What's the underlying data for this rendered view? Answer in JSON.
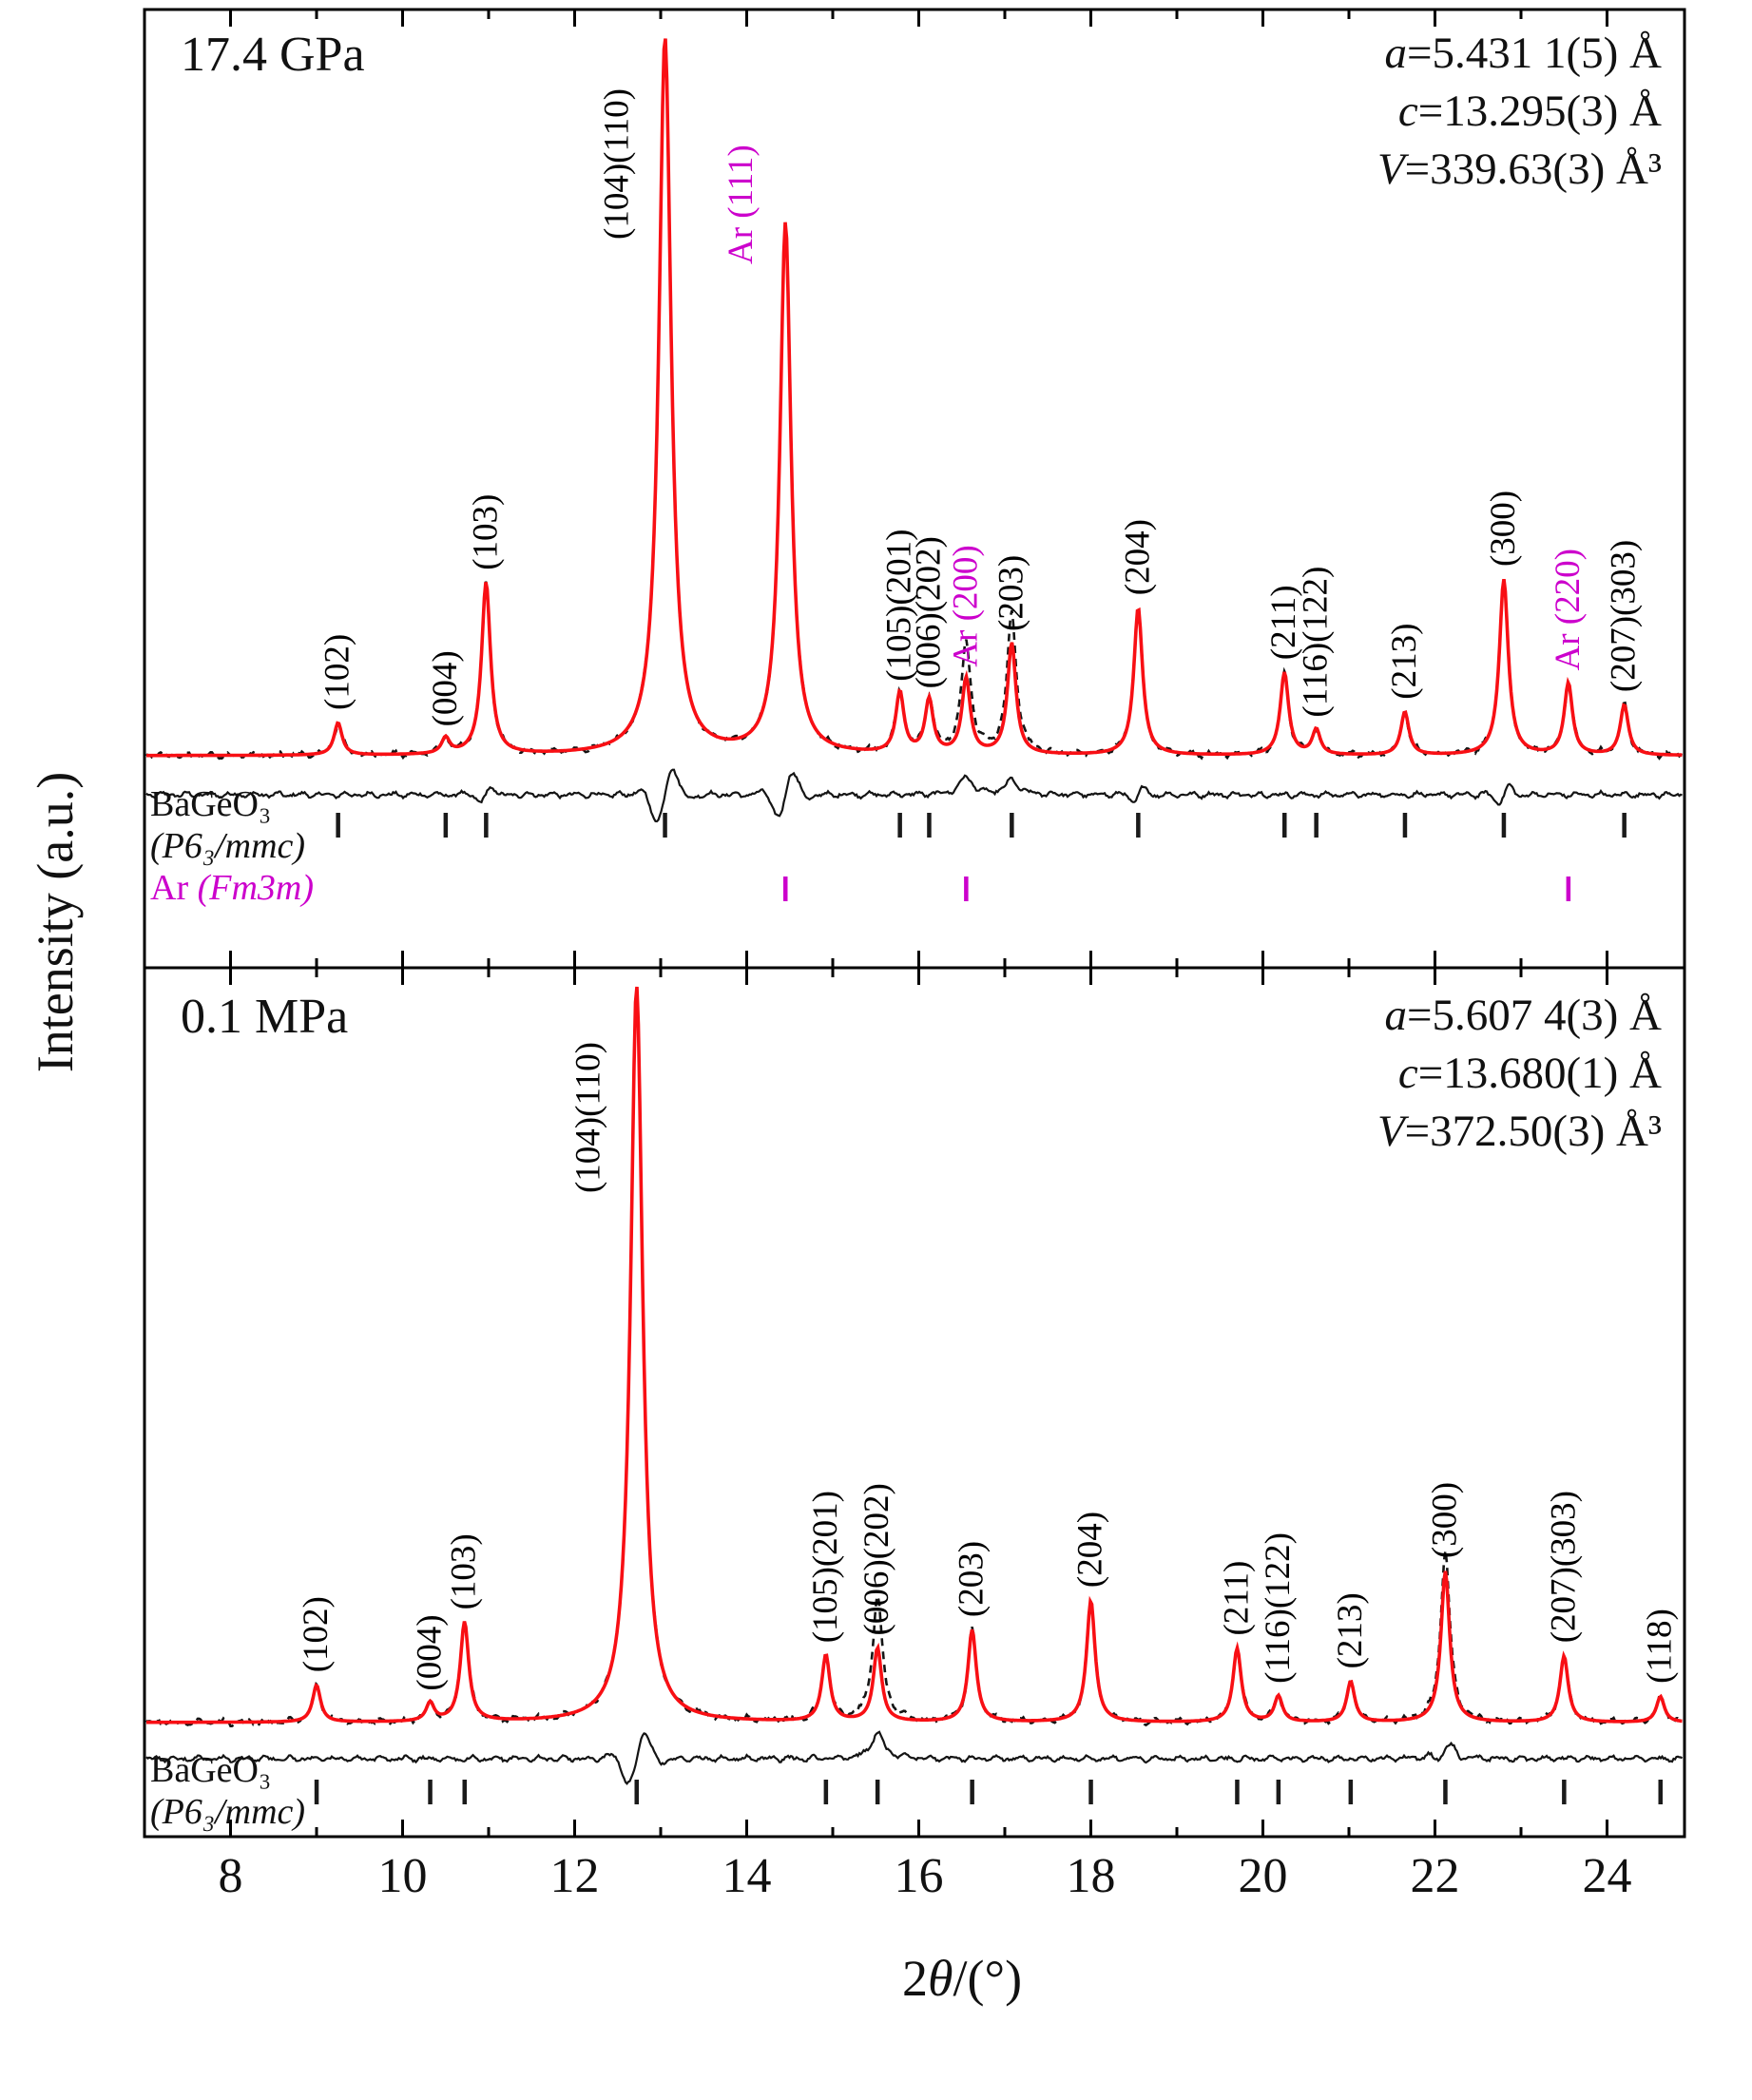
{
  "figure": {
    "y_axis_label": "Intensity (a.u.)",
    "x_axis_label": "2θ/(°)",
    "x_axis_label_parts": {
      "prefix": "2",
      "theta": "θ",
      "suffix": "/(°)"
    },
    "x_ticks": [
      "8",
      "10",
      "12",
      "14",
      "16",
      "18",
      "20",
      "22",
      "24"
    ],
    "colors": {
      "calculated": "#f80f14",
      "observed": "#141414",
      "difference": "#141414",
      "argon": "#cc00cc",
      "bragg_tick": "#1a1a1a"
    }
  },
  "chart_data": [
    {
      "type": "line",
      "panel": "top",
      "pressure_label": "17.4 GPa",
      "x_range": [
        7.0,
        24.9
      ],
      "xlabel": "2θ/(°)",
      "ylabel": "Intensity (a.u.)",
      "series": [
        "observed (black dashed)",
        "calculated (red solid)",
        "difference (black solid)"
      ],
      "lattice_parameters": [
        {
          "symbol": "a",
          "value": "=5.431 1(5) Å"
        },
        {
          "symbol": "c",
          "value": "=13.295(3) Å"
        },
        {
          "symbol": "V",
          "value": "=339.63(3) Å³"
        }
      ],
      "peaks": [
        {
          "two_theta": 9.25,
          "rel_intensity": 0.045,
          "label": "(102)",
          "phase": "BaGeO3"
        },
        {
          "two_theta": 10.5,
          "rel_intensity": 0.022,
          "label": "(004)",
          "phase": "BaGeO3"
        },
        {
          "two_theta": 10.97,
          "rel_intensity": 0.24,
          "label": "(103)",
          "phase": "BaGeO3"
        },
        {
          "two_theta": 13.05,
          "rel_intensity": 1.0,
          "label": "(104)(110)",
          "phase": "BaGeO3",
          "label_dx": -50,
          "label_y": 252
        },
        {
          "two_theta": 14.45,
          "rel_intensity": 0.74,
          "label": "Ar (111)",
          "phase": "Ar",
          "label_dx": -46,
          "label_y": 278
        },
        {
          "two_theta": 15.78,
          "rel_intensity": 0.085,
          "label": "(105)(201)",
          "phase": "BaGeO3"
        },
        {
          "two_theta": 16.12,
          "rel_intensity": 0.075,
          "label": "(006)(202)",
          "phase": "BaGeO3"
        },
        {
          "two_theta": 16.55,
          "rel_intensity": 0.105,
          "label": "Ar (200)",
          "phase": "Ar",
          "obs_extra": 0.05
        },
        {
          "two_theta": 17.08,
          "rel_intensity": 0.155,
          "label": "(203)",
          "phase": "BaGeO3",
          "obs_extra": 0.04
        },
        {
          "two_theta": 18.55,
          "rel_intensity": 0.205,
          "label": "(204)",
          "phase": "BaGeO3"
        },
        {
          "two_theta": 20.25,
          "rel_intensity": 0.115,
          "label": "(211)",
          "phase": "BaGeO3"
        },
        {
          "two_theta": 20.62,
          "rel_intensity": 0.035,
          "label": "(116)(122)",
          "phase": "BaGeO3"
        },
        {
          "two_theta": 21.65,
          "rel_intensity": 0.06,
          "label": "(213)",
          "phase": "BaGeO3"
        },
        {
          "two_theta": 22.8,
          "rel_intensity": 0.245,
          "label": "(300)",
          "phase": "BaGeO3"
        },
        {
          "two_theta": 23.55,
          "rel_intensity": 0.1,
          "label": "Ar (220)",
          "phase": "Ar"
        },
        {
          "two_theta": 24.2,
          "rel_intensity": 0.07,
          "label": "(207)(303)",
          "phase": "BaGeO3"
        }
      ],
      "phases": [
        {
          "name": "BaGeO₃",
          "symmetry": "(P6₃/mmc)",
          "tick_color": "#1a1a1a",
          "tick_positions": [
            9.25,
            10.5,
            10.97,
            13.05,
            15.78,
            16.12,
            17.08,
            18.55,
            20.25,
            20.62,
            21.65,
            22.8,
            24.2
          ]
        },
        {
          "name": "Ar",
          "symmetry": "(Fm3m)",
          "tick_color": "#cc00cc",
          "tick_positions": [
            14.45,
            16.55,
            23.55
          ]
        }
      ]
    },
    {
      "type": "line",
      "panel": "bottom",
      "pressure_label": "0.1 MPa",
      "x_range": [
        7.0,
        24.9
      ],
      "xlabel": "2θ/(°)",
      "ylabel": "Intensity (a.u.)",
      "series": [
        "observed (black dashed)",
        "calculated (red solid)",
        "difference (black solid)"
      ],
      "lattice_parameters": [
        {
          "symbol": "a",
          "value": "=5.607 4(3) Å"
        },
        {
          "symbol": "c",
          "value": "=13.680(1) Å"
        },
        {
          "symbol": "V",
          "value": "=372.50(3) Å³"
        }
      ],
      "peaks": [
        {
          "two_theta": 9.0,
          "rel_intensity": 0.05,
          "label": "(102)",
          "phase": "BaGeO3"
        },
        {
          "two_theta": 10.32,
          "rel_intensity": 0.025,
          "label": "(004)",
          "phase": "BaGeO3"
        },
        {
          "two_theta": 10.72,
          "rel_intensity": 0.135,
          "label": "(103)",
          "phase": "BaGeO3"
        },
        {
          "two_theta": 12.72,
          "rel_intensity": 1.0,
          "label": "(104)(110)",
          "phase": "BaGeO3",
          "label_dx": -50,
          "label_y": 1255
        },
        {
          "two_theta": 14.92,
          "rel_intensity": 0.09,
          "label": "(105)(201)",
          "phase": "BaGeO3"
        },
        {
          "two_theta": 15.52,
          "rel_intensity": 0.1,
          "label": "(006)(202)",
          "phase": "BaGeO3",
          "obs_extra": 0.07
        },
        {
          "two_theta": 16.62,
          "rel_intensity": 0.125,
          "label": "(203)",
          "phase": "BaGeO3"
        },
        {
          "two_theta": 18.0,
          "rel_intensity": 0.165,
          "label": "(204)",
          "phase": "BaGeO3"
        },
        {
          "two_theta": 19.7,
          "rel_intensity": 0.1,
          "label": "(211)",
          "phase": "BaGeO3"
        },
        {
          "two_theta": 20.18,
          "rel_intensity": 0.035,
          "label": "(116)(122)",
          "phase": "BaGeO3"
        },
        {
          "two_theta": 21.02,
          "rel_intensity": 0.055,
          "label": "(213)",
          "phase": "BaGeO3"
        },
        {
          "two_theta": 22.12,
          "rel_intensity": 0.205,
          "label": "(300)",
          "phase": "BaGeO3",
          "obs_extra": 0.03
        },
        {
          "two_theta": 23.5,
          "rel_intensity": 0.09,
          "label": "(207)(303)",
          "phase": "BaGeO3"
        },
        {
          "two_theta": 24.62,
          "rel_intensity": 0.035,
          "label": "(118)",
          "phase": "BaGeO3"
        }
      ],
      "phases": [
        {
          "name": "BaGeO₃",
          "symmetry": "(P6₃/mmc)",
          "tick_color": "#1a1a1a",
          "tick_positions": [
            9.0,
            10.32,
            10.72,
            12.72,
            14.92,
            15.52,
            16.62,
            18.0,
            19.7,
            20.18,
            21.02,
            22.12,
            23.5,
            24.62
          ]
        }
      ]
    }
  ]
}
